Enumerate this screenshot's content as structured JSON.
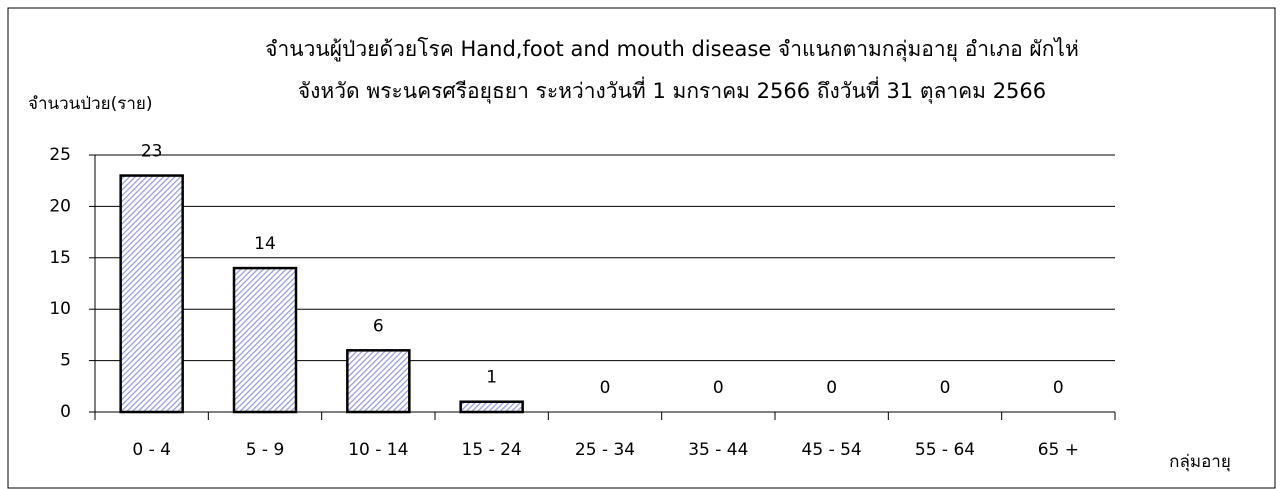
{
  "chart_data": {
    "type": "bar",
    "title": "จำนวนผู้ป่วยด้วยโรค Hand,foot and mouth disease  จำแนกตามกลุ่มอายุ    อำเภอ  ผักไห่",
    "subtitle": "จังหวัด พระนครศรีอยุธยา  ระหว่างวันที่  1 มกราคม 2566  ถึงวันที่  31 ตุลาคม 2566",
    "y_label": "จำนวนป่วย(ราย)",
    "x_label": "กลุ่มอายุ",
    "categories": [
      "0 - 4",
      "5 - 9",
      "10 - 14",
      "15 - 24",
      "25 - 34",
      "35 - 44",
      "45 - 54",
      "55 - 64",
      "65 +"
    ],
    "values": [
      23,
      14,
      6,
      1,
      0,
      0,
      0,
      0,
      0
    ],
    "color": "#9999dd",
    "ylim": [
      0,
      25
    ],
    "yticks": [
      0,
      5,
      10,
      15,
      20,
      25
    ],
    "grid": true
  }
}
